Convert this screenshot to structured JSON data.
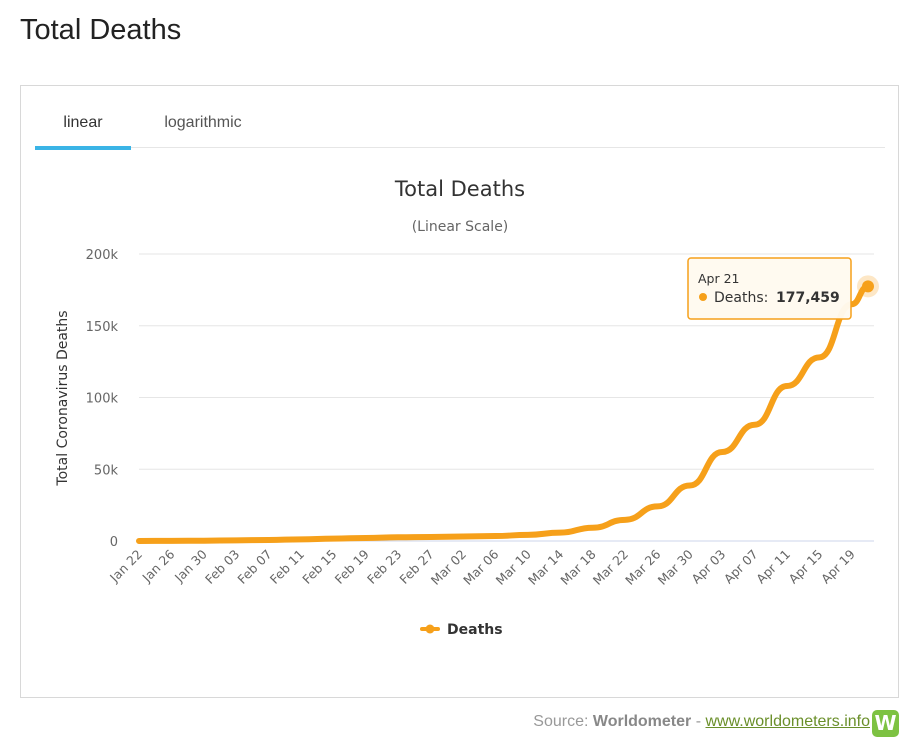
{
  "page": {
    "title": "Total Deaths"
  },
  "tabs": [
    {
      "label": "linear",
      "active": true
    },
    {
      "label": "logarithmic",
      "active": false
    }
  ],
  "chart_data": {
    "type": "line",
    "title": "Total Deaths",
    "subtitle": "(Linear Scale)",
    "ylabel": "Total Coronavirus Deaths",
    "xlabel": "",
    "ylim": [
      0,
      200000
    ],
    "yticks": [
      "0",
      "50k",
      "100k",
      "150k",
      "200k"
    ],
    "ytick_values": [
      0,
      50000,
      100000,
      150000,
      200000
    ],
    "grid": true,
    "legend_position": "bottom",
    "x_tick_labels": [
      "Jan 22",
      "Jan 26",
      "Jan 30",
      "Feb 03",
      "Feb 07",
      "Feb 11",
      "Feb 15",
      "Feb 19",
      "Feb 23",
      "Feb 27",
      "Mar 02",
      "Mar 06",
      "Mar 10",
      "Mar 14",
      "Mar 18",
      "Mar 22",
      "Mar 26",
      "Mar 30",
      "Apr 03",
      "Apr 07",
      "Apr 11",
      "Apr 15",
      "Apr 19"
    ],
    "x": [
      "Jan 22",
      "Jan 26",
      "Jan 30",
      "Feb 03",
      "Feb 07",
      "Feb 11",
      "Feb 15",
      "Feb 19",
      "Feb 23",
      "Feb 27",
      "Mar 02",
      "Mar 06",
      "Mar 10",
      "Mar 14",
      "Mar 18",
      "Mar 22",
      "Mar 26",
      "Mar 30",
      "Apr 03",
      "Apr 07",
      "Apr 11",
      "Apr 15",
      "Apr 19",
      "Apr 21"
    ],
    "series": [
      {
        "name": "Deaths",
        "color": "#f6a01a",
        "values": [
          17,
          80,
          213,
          427,
          720,
          1113,
          1669,
          2122,
          2623,
          2811,
          3117,
          3460,
          4292,
          5835,
          9271,
          14748,
          24086,
          38705,
          62000,
          81000,
          108000,
          128000,
          165000,
          177459
        ]
      }
    ],
    "tooltip": {
      "date": "Apr 21",
      "label": "Deaths:",
      "value": "177,459"
    }
  },
  "footer": {
    "source_prefix": "Source:",
    "source_name": "Worldometer",
    "separator": "-",
    "link_text": "www.worldometers.info",
    "logo_letter": "W"
  }
}
